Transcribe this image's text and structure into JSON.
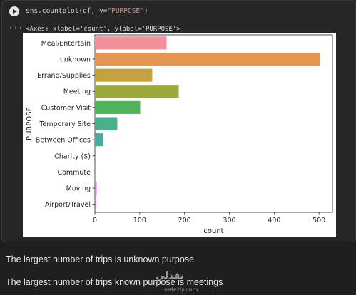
{
  "cell": {
    "code_prefix": "sns.countplot(df, y=",
    "code_string": "\"PURPOSE\"",
    "code_suffix": ")",
    "output_icon": "···",
    "output_text": "<Axes: xlabel='count', ylabel='PURPOSE'>"
  },
  "chart_data": {
    "type": "bar",
    "orientation": "horizontal",
    "categories": [
      "Meal/Entertain",
      "unknown",
      "Errand/Supplies",
      "Meeting",
      "Customer Visit",
      "Temporary Site",
      "Between Offices",
      "Charity ($)",
      "Commute",
      "Moving",
      "Airport/Travel"
    ],
    "values": [
      160,
      502,
      128,
      187,
      101,
      50,
      18,
      1,
      1,
      4,
      3
    ],
    "colors": [
      "#f0909b",
      "#e8964f",
      "#c4a13e",
      "#9ba83b",
      "#4fb35a",
      "#49b08f",
      "#4bab9c",
      "#5b9bd5",
      "#8c8ee0",
      "#c779d6",
      "#ea6fbf"
    ],
    "xlabel": "count",
    "ylabel": "PURPOSE",
    "xlim": [
      0,
      530
    ],
    "xticks": [
      0,
      100,
      200,
      300,
      400,
      500
    ],
    "grid": false
  },
  "notes": {
    "line1": "The largest number of trips is unknown purpose",
    "line2": "The largest number of trips known purpose is meetings"
  },
  "watermark": {
    "text": "نفذلي",
    "url": "nafezly.com"
  }
}
